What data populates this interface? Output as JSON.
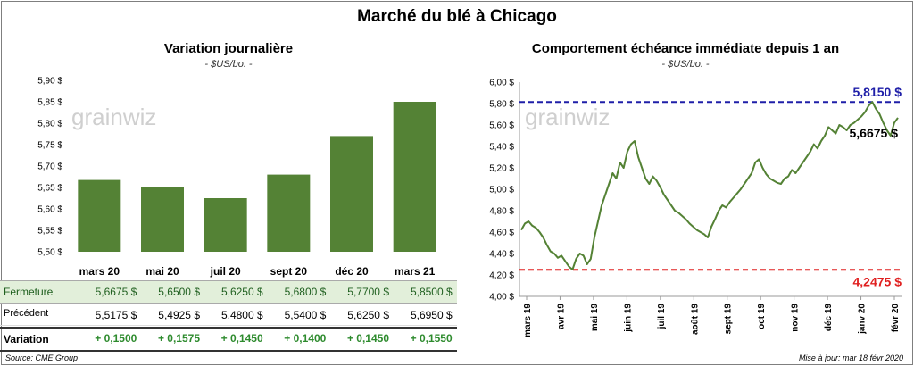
{
  "title": "Marché du blé à Chicago",
  "left": {
    "subtitle": "Variation journalière",
    "unit": "- $US/bo. -"
  },
  "right": {
    "subtitle": "Comportement échéance immédiate depuis 1 an",
    "unit": "- $US/bo. -"
  },
  "watermark": "grainwiz",
  "table": {
    "fermeture_label": "Fermeture",
    "precedent_label": "Précédent",
    "variation_label": "Variation",
    "fermeture": [
      "5,6675 $",
      "5,6500 $",
      "5,6250 $",
      "5,6800 $",
      "5,7700 $",
      "5,8500 $"
    ],
    "precedent": [
      "5,5175 $",
      "5,4925 $",
      "5,4800 $",
      "5,5400 $",
      "5,6250 $",
      "5,6950 $"
    ],
    "variation": [
      "+ 0,1500",
      "+ 0,1575",
      "+ 0,1450",
      "+ 0,1400",
      "+ 0,1450",
      "+ 0,1550"
    ]
  },
  "source": "Source: CME Group",
  "update": "Mise à jour: mar 18 févr 2020",
  "colors": {
    "bar": "#548235",
    "line": "#548235",
    "max_line": "#1f1fa8",
    "min_line": "#e02020",
    "row_highlight": "#e2efda",
    "variation_text": "#2e8b2e"
  },
  "chart_data": [
    {
      "type": "bar",
      "categories": [
        "mars 20",
        "mai 20",
        "juil 20",
        "sept 20",
        "déc 20",
        "mars 21"
      ],
      "values": [
        5.6675,
        5.65,
        5.625,
        5.68,
        5.77,
        5.85
      ],
      "ylim": [
        5.5,
        5.9
      ],
      "yticks": [
        "5,50 $",
        "5,55 $",
        "5,60 $",
        "5,65 $",
        "5,70 $",
        "5,75 $",
        "5,80 $",
        "5,85 $",
        "5,90 $"
      ],
      "grid": false
    },
    {
      "type": "line",
      "x_labels": [
        "mars 19",
        "avr 19",
        "mai 19",
        "juin 19",
        "juil 19",
        "août 19",
        "sept 19",
        "oct 19",
        "nov 19",
        "déc 19",
        "janv 20",
        "févr 20"
      ],
      "ylim": [
        4.0,
        6.0
      ],
      "yticks": [
        "4,00 $",
        "4,20 $",
        "4,40 $",
        "4,60 $",
        "4,80 $",
        "5,00 $",
        "5,20 $",
        "5,40 $",
        "5,60 $",
        "5,80 $",
        "6,00 $"
      ],
      "values": [
        4.62,
        4.68,
        4.7,
        4.66,
        4.64,
        4.6,
        4.55,
        4.48,
        4.42,
        4.4,
        4.36,
        4.38,
        4.33,
        4.28,
        4.25,
        4.35,
        4.4,
        4.38,
        4.3,
        4.35,
        4.55,
        4.7,
        4.85,
        4.95,
        5.05,
        5.15,
        5.1,
        5.25,
        5.2,
        5.35,
        5.42,
        5.45,
        5.3,
        5.2,
        5.1,
        5.05,
        5.12,
        5.08,
        5.02,
        4.95,
        4.9,
        4.85,
        4.8,
        4.78,
        4.75,
        4.72,
        4.68,
        4.65,
        4.62,
        4.6,
        4.58,
        4.55,
        4.65,
        4.72,
        4.8,
        4.85,
        4.83,
        4.88,
        4.92,
        4.96,
        5.0,
        5.05,
        5.1,
        5.15,
        5.25,
        5.28,
        5.2,
        5.14,
        5.1,
        5.08,
        5.06,
        5.05,
        5.1,
        5.12,
        5.18,
        5.15,
        5.2,
        5.25,
        5.3,
        5.35,
        5.42,
        5.38,
        5.45,
        5.5,
        5.58,
        5.55,
        5.52,
        5.6,
        5.58,
        5.55,
        5.6,
        5.62,
        5.65,
        5.68,
        5.72,
        5.78,
        5.815,
        5.75,
        5.7,
        5.62,
        5.55,
        5.5,
        5.62,
        5.6675
      ],
      "max_label": "5,8150 $",
      "max_value": 5.815,
      "min_label": "4,2475 $",
      "min_value": 4.2475,
      "last_label": "5,6675 $",
      "grid": false
    }
  ]
}
